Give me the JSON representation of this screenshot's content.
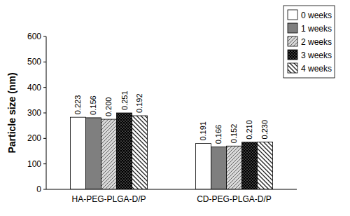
{
  "chart_data": {
    "type": "bar",
    "y_label": "Particle size (nm)",
    "categories": [
      "HA-PEG-PLGA-D/P",
      "CD-PEG-PLGA-D/P"
    ],
    "series": [
      {
        "name": "0 weeks",
        "color": "#ffffff",
        "values": [
          283,
          180
        ],
        "pdi": [
          0.223,
          0.191
        ]
      },
      {
        "name": "1 weeks",
        "color": "#7f7f7f",
        "values": [
          281,
          167
        ],
        "pdi": [
          0.156,
          0.166
        ]
      },
      {
        "name": "2 weeks",
        "color": "#d9d9d9",
        "values": [
          275,
          170
        ],
        "pdi": [
          0.2,
          0.152
        ]
      },
      {
        "name": "3 weeks",
        "color": "#000000",
        "values": [
          300,
          185
        ],
        "pdi": [
          0.251,
          0.21
        ]
      },
      {
        "name": "4 weeks",
        "color": "#ffffff",
        "values": [
          289,
          186
        ],
        "pdi": [
          0.192,
          0.23
        ]
      }
    ],
    "ylim": [
      0,
      600
    ],
    "yticks": [
      0,
      100,
      200,
      300,
      400,
      500,
      600
    ],
    "grid": false,
    "legend": "top-right"
  }
}
